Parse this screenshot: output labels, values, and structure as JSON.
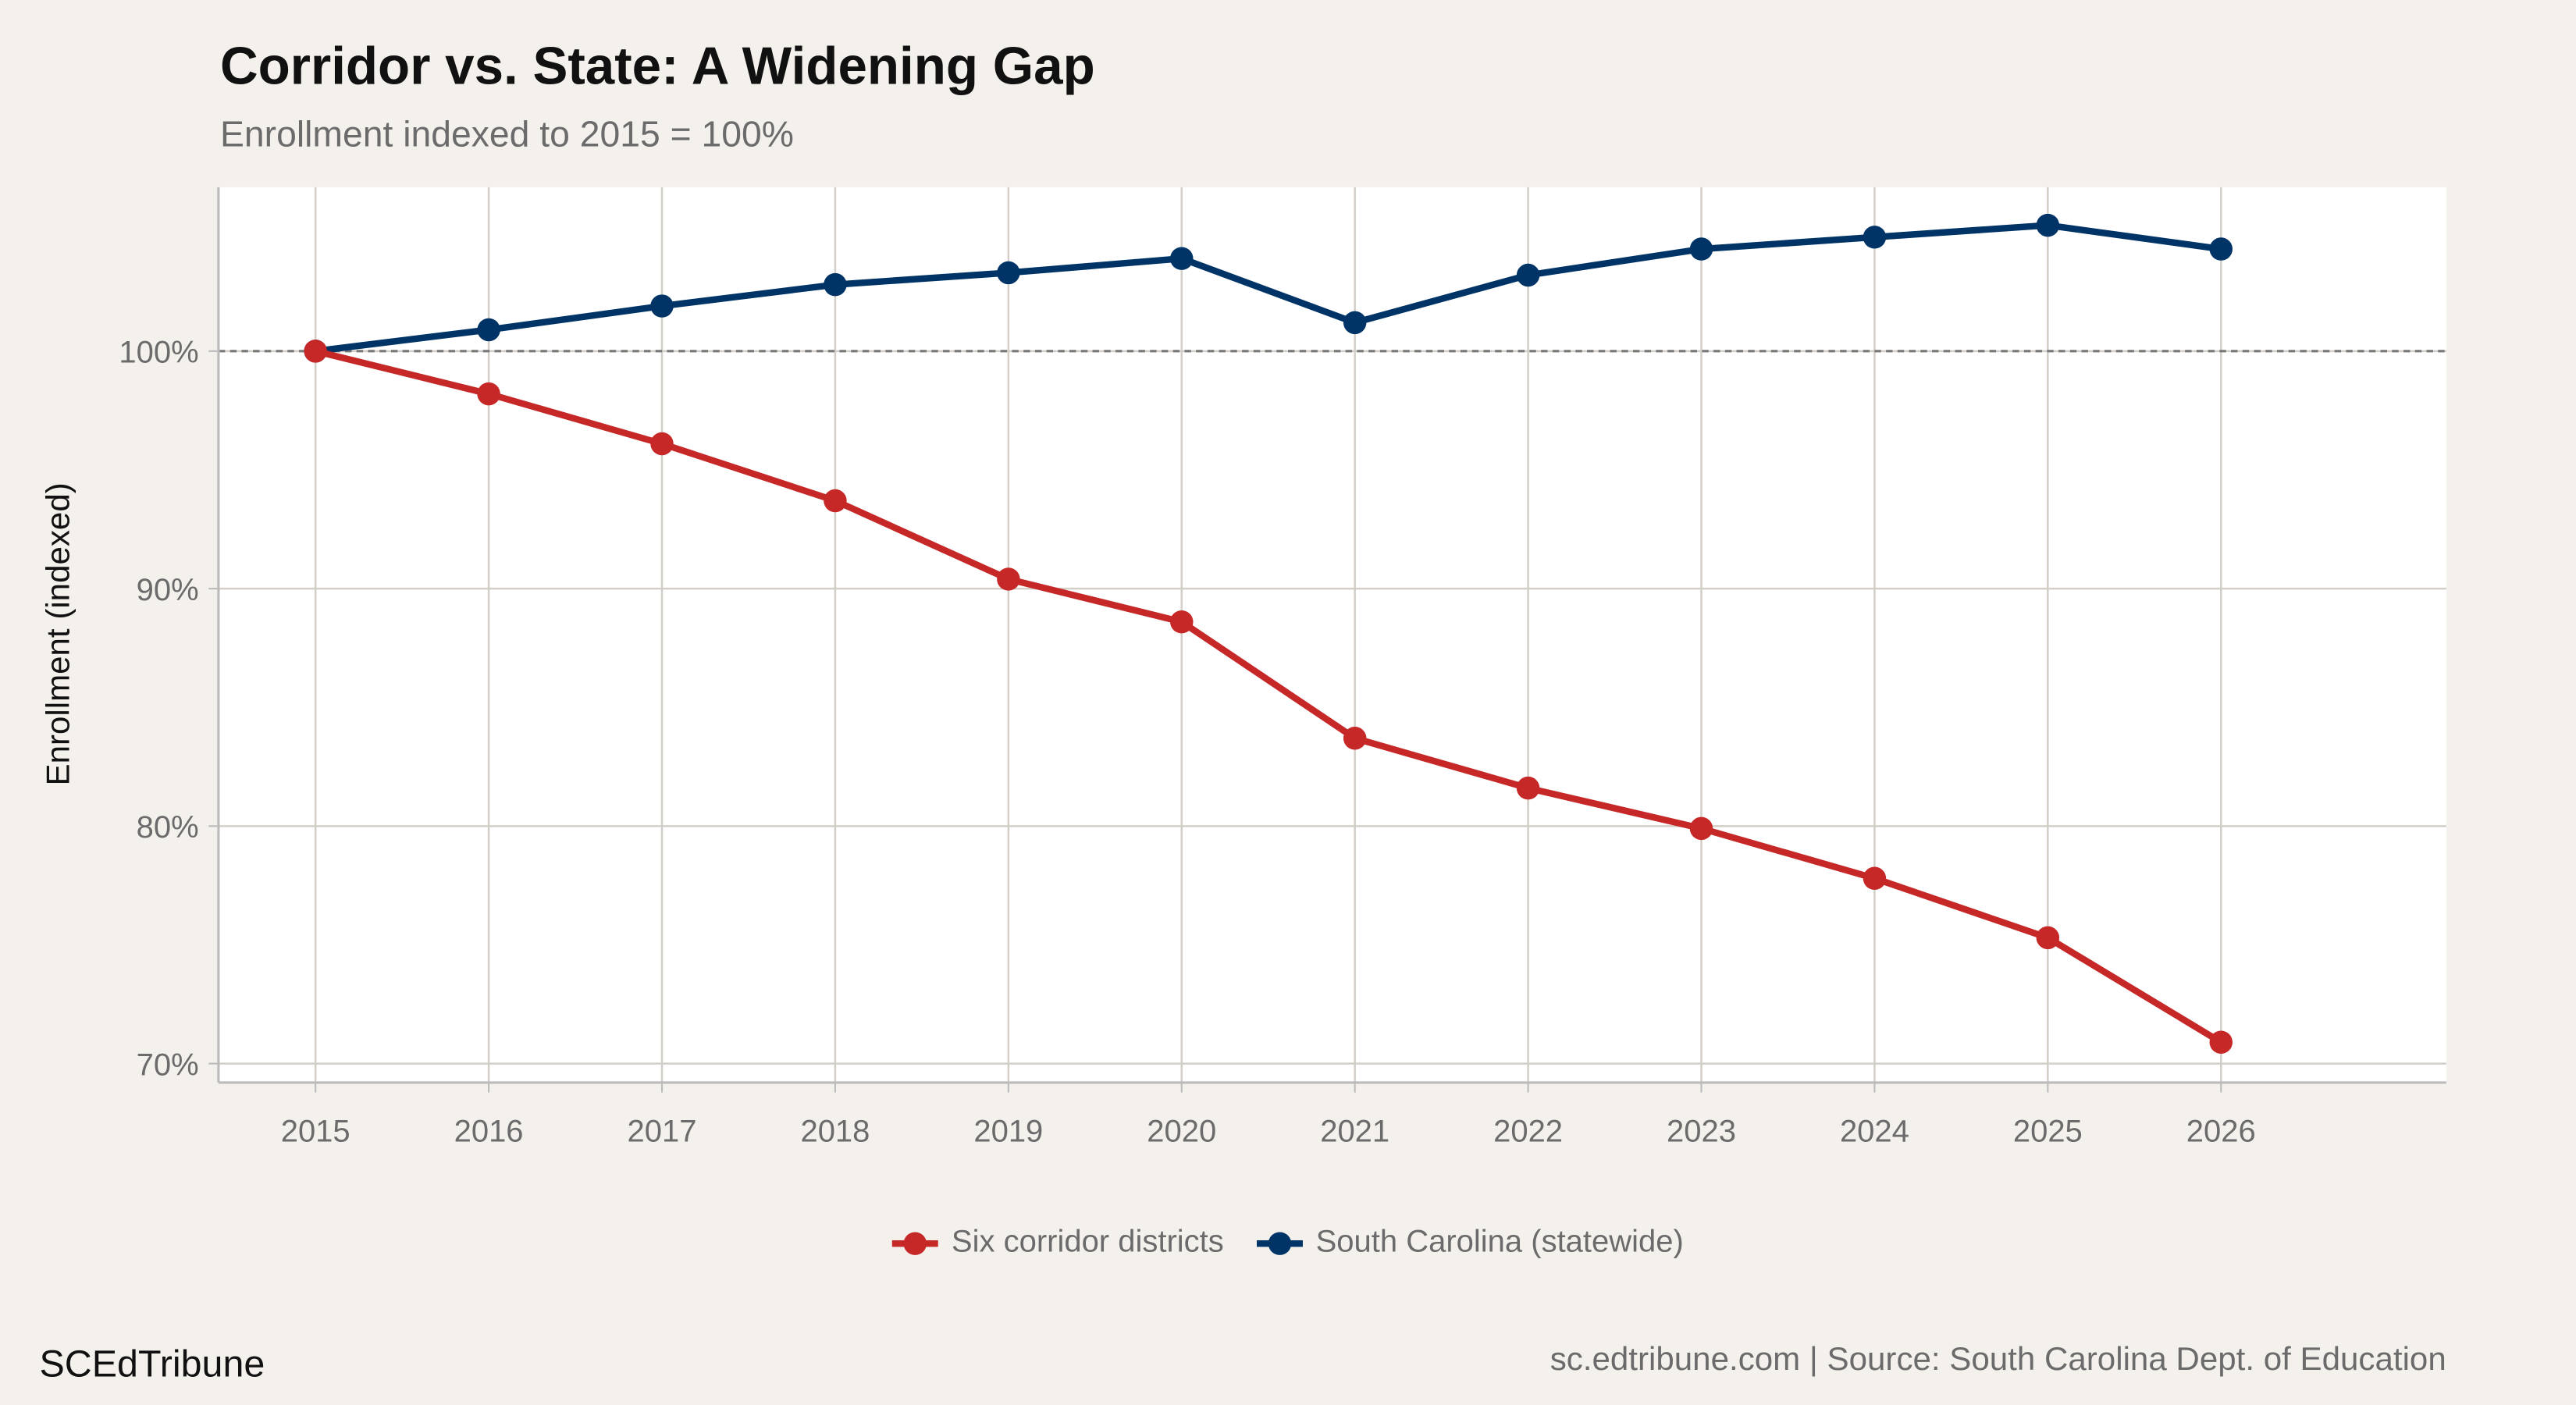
{
  "title": "Corridor vs. State: A Widening Gap",
  "subtitle": "Enrollment indexed to 2015 = 100%",
  "brand": "SCEdTribune",
  "source": "sc.edtribune.com | Source: South Carolina Dept. of Education",
  "chart_data": {
    "type": "line",
    "x": [
      2015,
      2016,
      2017,
      2018,
      2019,
      2020,
      2021,
      2022,
      2023,
      2024,
      2025,
      2026
    ],
    "x_tick_labels": [
      "2015",
      "2016",
      "2017",
      "2018",
      "2019",
      "2020",
      "2021",
      "2022",
      "2023",
      "2024",
      "2025",
      "2026"
    ],
    "ylabel": "Enrollment (indexed)",
    "xlabel": "",
    "y_ticks": [
      70,
      80,
      90,
      100
    ],
    "y_tick_labels": [
      "70%",
      "80%",
      "90%",
      "100%"
    ],
    "ylim": [
      69.2,
      106.9
    ],
    "xlim": [
      2014.44,
      2027.3
    ],
    "reference_line": {
      "y": 100,
      "style": "dashed"
    },
    "grid": true,
    "legend_position": "bottom",
    "series": [
      {
        "name": "Six corridor districts",
        "color": "#c62828",
        "values": [
          100,
          98.2,
          96.1,
          93.7,
          90.4,
          88.6,
          83.7,
          81.6,
          79.9,
          77.8,
          75.3,
          70.9
        ]
      },
      {
        "name": "South Carolina (statewide)",
        "color": "#003366",
        "values": [
          100,
          100.9,
          101.9,
          102.8,
          103.3,
          103.9,
          101.2,
          103.2,
          104.3,
          104.8,
          105.3,
          104.3
        ]
      }
    ]
  }
}
